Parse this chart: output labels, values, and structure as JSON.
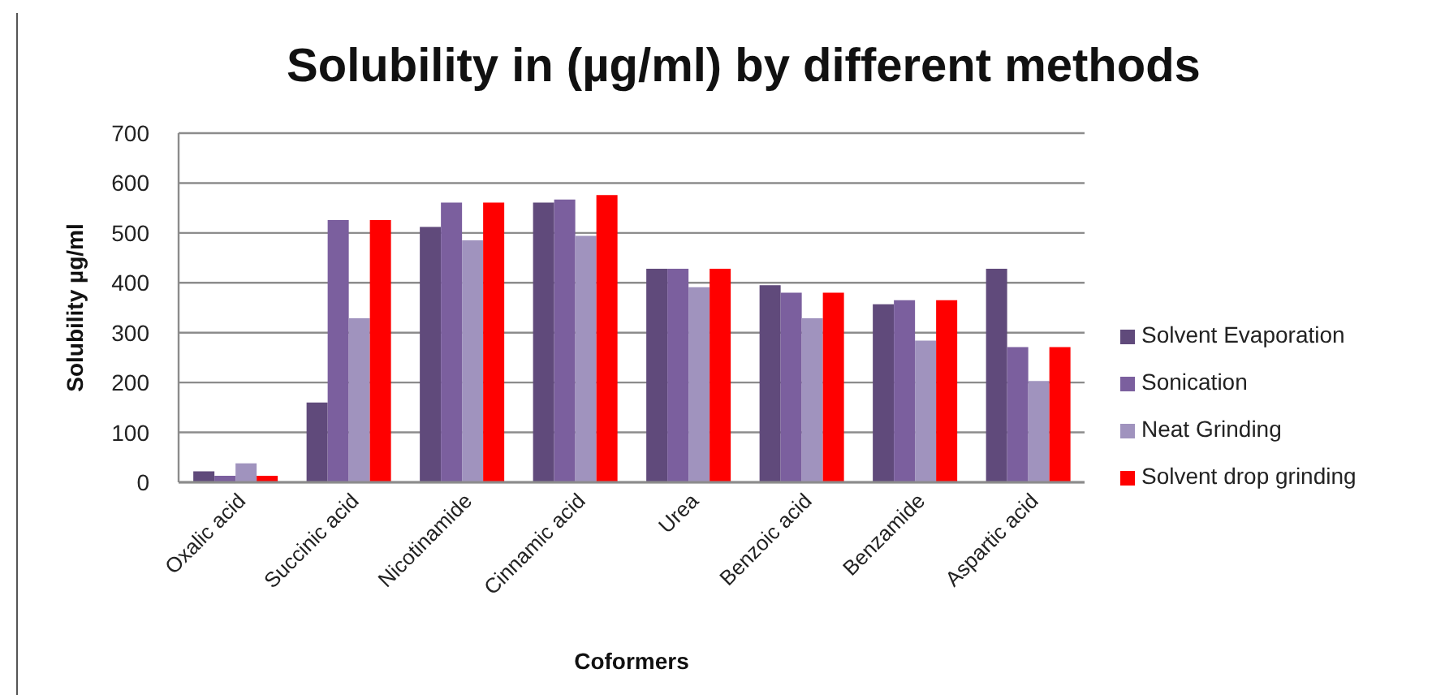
{
  "chart_data": {
    "type": "bar",
    "title": "Solubility in (µg/ml) by different methods",
    "xlabel": "Coformers",
    "ylabel": "Solubility µg/ml",
    "categories": [
      "Oxalic acid",
      "Succinic acid",
      "Nicotinamide",
      "Cinnamic acid",
      "Urea",
      "Benzoic acid",
      "Benzamide",
      "Aspartic acid"
    ],
    "series": [
      {
        "name": "Solvent Evaporation",
        "color": "#604a7b",
        "values": [
          22,
          160,
          512,
          561,
          428,
          395,
          357,
          428
        ]
      },
      {
        "name": "Sonication",
        "color": "#7b5f9e",
        "values": [
          13,
          526,
          561,
          567,
          428,
          380,
          365,
          271
        ]
      },
      {
        "name": "Neat Grinding",
        "color": "#a093be",
        "values": [
          38,
          329,
          485,
          494,
          391,
          329,
          284,
          203
        ]
      },
      {
        "name": "Solvent drop grinding",
        "color": "#ff0000",
        "values": [
          13,
          526,
          561,
          576,
          428,
          380,
          365,
          271
        ]
      }
    ],
    "ylim": [
      0,
      700
    ],
    "yticks": [
      0,
      100,
      200,
      300,
      400,
      500,
      600,
      700
    ],
    "grid": "y",
    "legend": "right"
  }
}
